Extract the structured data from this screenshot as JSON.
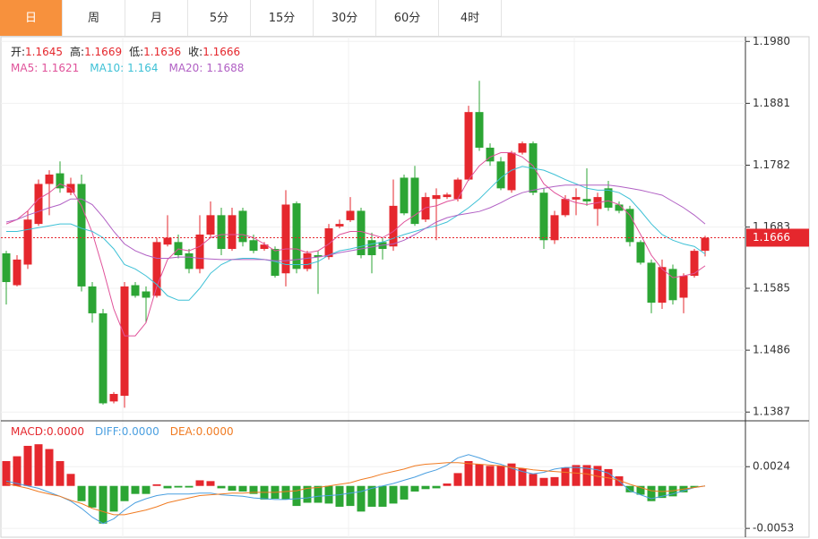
{
  "tabs": {
    "items": [
      "日",
      "周",
      "月",
      "5分",
      "15分",
      "30分",
      "60分",
      "4时"
    ],
    "active": 0
  },
  "chart_data": [
    {
      "type": "candlestick",
      "info_labels": [
        "开:",
        "高:",
        "低:",
        "收:"
      ],
      "open": [
        1.1641,
        1.159,
        1.1623,
        1.1688,
        1.1752,
        1.1769,
        1.1738,
        1.1752,
        1.1588,
        1.1545,
        1.1404,
        1.1413,
        1.159,
        1.158,
        1.1573,
        1.1655,
        1.1659,
        1.1641,
        1.1616,
        1.1671,
        1.1702,
        1.1648,
        1.1709,
        1.1662,
        1.1648,
        1.1648,
        1.1609,
        1.1721,
        1.1616,
        1.1638,
        1.1635,
        1.1684,
        1.1694,
        1.1709,
        1.1662,
        1.1659,
        1.1652,
        1.1762,
        1.1762,
        1.1695,
        1.1728,
        1.1731,
        1.1728,
        1.1759,
        1.1867,
        1.181,
        1.1788,
        1.1742,
        1.1802,
        1.1817,
        1.1738,
        1.1662,
        1.1702,
        1.1727,
        1.1728,
        1.1712,
        1.1745,
        1.1719,
        1.1712,
        1.1659,
        1.1626,
        1.1562,
        1.1616,
        1.157,
        1.1605,
        1.1645
      ],
      "high": [
        1.1645,
        1.1638,
        1.1709,
        1.1759,
        1.1774,
        1.1788,
        1.1762,
        1.1767,
        1.1595,
        1.1552,
        1.1419,
        1.1595,
        1.1595,
        1.1588,
        1.1666,
        1.1702,
        1.1671,
        1.1648,
        1.1702,
        1.1724,
        1.1714,
        1.1714,
        1.1714,
        1.1671,
        1.1659,
        1.1652,
        1.1742,
        1.1724,
        1.1645,
        1.1645,
        1.1688,
        1.1695,
        1.1731,
        1.1714,
        1.1674,
        1.1666,
        1.1759,
        1.1767,
        1.1781,
        1.1738,
        1.1745,
        1.1738,
        1.1762,
        1.1877,
        1.1917,
        1.1817,
        1.1795,
        1.1805,
        1.182,
        1.182,
        1.1745,
        1.1709,
        1.1734,
        1.1745,
        1.1777,
        1.1738,
        1.1757,
        1.1724,
        1.1717,
        1.1662,
        1.1631,
        1.1631,
        1.1623,
        1.1609,
        1.1648,
        1.1669
      ],
      "low": [
        1.1559,
        1.1588,
        1.1616,
        1.1685,
        1.1702,
        1.1738,
        1.1734,
        1.158,
        1.153,
        1.1399,
        1.1401,
        1.1394,
        1.157,
        1.153,
        1.157,
        1.1652,
        1.1633,
        1.1609,
        1.1609,
        1.1666,
        1.1638,
        1.1645,
        1.1652,
        1.1641,
        1.1645,
        1.1602,
        1.1588,
        1.1609,
        1.1612,
        1.1576,
        1.1631,
        1.1681,
        1.1691,
        1.1633,
        1.1609,
        1.1631,
        1.1645,
        1.1702,
        1.1685,
        1.1691,
        1.1662,
        1.1728,
        1.1724,
        1.1757,
        1.1805,
        1.1781,
        1.1742,
        1.1738,
        1.1799,
        1.1734,
        1.1648,
        1.1656,
        1.1699,
        1.1702,
        1.1717,
        1.1685,
        1.1709,
        1.1705,
        1.1652,
        1.1623,
        1.1545,
        1.1552,
        1.1559,
        1.1545,
        1.1602,
        1.1636
      ],
      "close": [
        1.1595,
        1.1631,
        1.1695,
        1.1752,
        1.1767,
        1.1745,
        1.1752,
        1.1588,
        1.1545,
        1.1401,
        1.1416,
        1.1588,
        1.1573,
        1.157,
        1.1659,
        1.1666,
        1.1638,
        1.1616,
        1.1671,
        1.1702,
        1.1648,
        1.1702,
        1.1659,
        1.1645,
        1.1655,
        1.1605,
        1.1719,
        1.1616,
        1.1641,
        1.1635,
        1.1681,
        1.1688,
        1.1709,
        1.1638,
        1.1638,
        1.1648,
        1.1717,
        1.1705,
        1.1688,
        1.1731,
        1.1734,
        1.1735,
        1.1759,
        1.1867,
        1.181,
        1.1788,
        1.1745,
        1.1802,
        1.1817,
        1.1738,
        1.1662,
        1.1702,
        1.1728,
        1.1731,
        1.1724,
        1.1731,
        1.1714,
        1.1709,
        1.1659,
        1.1626,
        1.1562,
        1.1619,
        1.1566,
        1.1605,
        1.1645,
        1.1666
      ],
      "up_color": "#e5272d",
      "down_color": "#2ca534",
      "series": [
        {
          "name": "MA5:",
          "color": "#e0529a",
          "values": [
            1.1688,
            1.1695,
            1.1709,
            1.1728,
            1.1738,
            1.1752,
            1.1745,
            1.1717,
            1.1674,
            1.1616,
            1.1552,
            1.1509,
            1.1509,
            1.153,
            1.1588,
            1.1631,
            1.1648,
            1.1645,
            1.1652,
            1.1666,
            1.1671,
            1.1671,
            1.1671,
            1.1666,
            1.1656,
            1.1645,
            1.1648,
            1.1648,
            1.1642,
            1.1645,
            1.1656,
            1.1671,
            1.1676,
            1.1676,
            1.1671,
            1.1666,
            1.1676,
            1.1691,
            1.1702,
            1.1714,
            1.1717,
            1.1724,
            1.1728,
            1.1759,
            1.1781,
            1.1795,
            1.1802,
            1.1802,
            1.1795,
            1.1781,
            1.1752,
            1.1738,
            1.1728,
            1.1722,
            1.1719,
            1.1722,
            1.1725,
            1.1719,
            1.1702,
            1.1671,
            1.1638,
            1.1616,
            1.1602,
            1.1605,
            1.1609,
            1.1621
          ]
        },
        {
          "name": "MA10:",
          "color": "#3ec1d6",
          "values": [
            1.1676,
            1.1676,
            1.1679,
            1.1682,
            1.1685,
            1.1688,
            1.1688,
            1.1681,
            1.1676,
            1.1666,
            1.1648,
            1.1623,
            1.1616,
            1.1605,
            1.1591,
            1.1573,
            1.1566,
            1.1566,
            1.1585,
            1.1609,
            1.1623,
            1.1631,
            1.1633,
            1.1633,
            1.1631,
            1.1628,
            1.1623,
            1.1623,
            1.1623,
            1.1628,
            1.1638,
            1.1645,
            1.1648,
            1.1652,
            1.1656,
            1.1659,
            1.1665,
            1.1671,
            1.1676,
            1.1681,
            1.1685,
            1.1691,
            1.1702,
            1.1714,
            1.1728,
            1.1745,
            1.1762,
            1.1774,
            1.178,
            1.1777,
            1.1774,
            1.1767,
            1.1759,
            1.1752,
            1.1745,
            1.1742,
            1.1742,
            1.1738,
            1.1728,
            1.1709,
            1.1688,
            1.1671,
            1.1662,
            1.1656,
            1.1652,
            1.164
          ]
        },
        {
          "name": "MA20:",
          "color": "#b160c4",
          "values": [
            1.1691,
            1.1695,
            1.1702,
            1.1708,
            1.1714,
            1.1719,
            1.1728,
            1.1728,
            1.1719,
            1.1699,
            1.1676,
            1.1656,
            1.1645,
            1.1638,
            1.1633,
            1.1633,
            1.1635,
            1.1635,
            1.1633,
            1.1632,
            1.1631,
            1.1631,
            1.1631,
            1.1631,
            1.1631,
            1.1629,
            1.1629,
            1.1631,
            1.1633,
            1.1635,
            1.1638,
            1.1642,
            1.1645,
            1.1648,
            1.1651,
            1.1654,
            1.1656,
            1.1662,
            1.1671,
            1.1681,
            1.1691,
            1.1698,
            1.1702,
            1.1705,
            1.1708,
            1.1714,
            1.1722,
            1.1731,
            1.1738,
            1.1742,
            1.1745,
            1.1748,
            1.175,
            1.175,
            1.175,
            1.175,
            1.175,
            1.1748,
            1.1745,
            1.1742,
            1.1738,
            1.1734,
            1.1724,
            1.1714,
            1.1702,
            1.1688
          ]
        }
      ],
      "price_line": 1.1666,
      "price_line_color": "#e5272d",
      "ylim": [
        1.1373,
        1.1989
      ],
      "yticks": [
        {
          "value": 1.198,
          "label": "1.1980"
        },
        1.1881,
        1.1782,
        1.1683,
        1.1585,
        1.1486,
        1.1387
      ]
    },
    {
      "type": "macd",
      "series": [
        {
          "name": "MACD:",
          "type": "bar",
          "color": "#e5272d",
          "down_color": "#2ca534",
          "current": {
            "value": 0,
            "label": "0.0000"
          },
          "values": [
            0.0031,
            0.0037,
            0.005,
            0.0052,
            0.0046,
            0.0031,
            0.0015,
            -0.0019,
            -0.0027,
            -0.0047,
            -0.0032,
            -0.0019,
            -0.001,
            -0.001,
            0.0002,
            -0.0003,
            -0.0002,
            -0.0002,
            0.0007,
            0.0006,
            -0.0003,
            -0.0006,
            -0.0007,
            -0.001,
            -0.0017,
            -0.0016,
            -0.0017,
            -0.0025,
            -0.0021,
            -0.0021,
            -0.0022,
            -0.0026,
            -0.0025,
            -0.0032,
            -0.0026,
            -0.0026,
            -0.0022,
            -0.0017,
            -0.0007,
            -0.0004,
            -0.0003,
            0.0003,
            0.0016,
            0.0031,
            0.0027,
            0.0025,
            0.0025,
            0.0028,
            0.0022,
            0.0015,
            0.001,
            0.0011,
            0.0023,
            0.0026,
            0.0026,
            0.0025,
            0.0021,
            0.0012,
            -0.0008,
            -0.0011,
            -0.0019,
            -0.0015,
            -0.0013,
            -0.0008,
            -0.0002,
            0
          ]
        },
        {
          "name": "DIFF:",
          "type": "line",
          "color": "#4a9fe0",
          "current": {
            "value": 0,
            "label": "0.0000"
          },
          "values": [
            0.0006,
            0.0003,
            0,
            -0.0003,
            -0.0008,
            -0.0013,
            -0.0019,
            -0.0028,
            -0.0039,
            -0.0047,
            -0.0041,
            -0.003,
            -0.0021,
            -0.0016,
            -0.0012,
            -0.001,
            -0.001,
            -0.001,
            -0.0009,
            -0.0009,
            -0.0011,
            -0.0012,
            -0.0013,
            -0.0015,
            -0.0016,
            -0.0017,
            -0.0017,
            -0.0016,
            -0.0015,
            -0.0013,
            -0.0012,
            -0.0011,
            -0.0009,
            -0.0007,
            -0.0003,
            0,
            0.0003,
            0.0007,
            0.0011,
            0.0016,
            0.002,
            0.0026,
            0.0035,
            0.0039,
            0.0035,
            0.003,
            0.0027,
            0.0022,
            0.0018,
            0.0015,
            0.0017,
            0.0021,
            0.0023,
            0.0023,
            0.0022,
            0.002,
            0.0016,
            0.0006,
            -0.0006,
            -0.0011,
            -0.0016,
            -0.0013,
            -0.001,
            -0.0006,
            -0.0002,
            0
          ]
        },
        {
          "name": "DEA:",
          "type": "line",
          "color": "#f07b22",
          "current": {
            "value": 0,
            "label": "0.0000"
          },
          "values": [
            0.0003,
            0,
            -0.0003,
            -0.0007,
            -0.001,
            -0.0013,
            -0.0018,
            -0.0022,
            -0.0028,
            -0.0032,
            -0.0036,
            -0.0036,
            -0.0033,
            -0.003,
            -0.0026,
            -0.0021,
            -0.0018,
            -0.0015,
            -0.0012,
            -0.0011,
            -0.001,
            -0.0009,
            -0.0009,
            -0.0008,
            -0.0008,
            -0.0008,
            -0.0007,
            -0.0006,
            -0.0003,
            -0.0002,
            0,
            0.0002,
            0.0004,
            0.0008,
            0.0011,
            0.0015,
            0.0018,
            0.0021,
            0.0025,
            0.0027,
            0.0028,
            0.0029,
            0.0029,
            0.0028,
            0.0027,
            0.0026,
            0.0025,
            0.0023,
            0.0022,
            0.002,
            0.0019,
            0.0018,
            0.0017,
            0.0016,
            0.0015,
            0.0012,
            0.001,
            0.0007,
            0.0002,
            -0.0002,
            -0.0006,
            -0.0007,
            -0.0006,
            -0.0004,
            -0.0002,
            0
          ]
        }
      ],
      "ylim": [
        -0.0064,
        0.0079
      ],
      "yticks": [
        0.0024,
        -0.0053
      ]
    }
  ]
}
